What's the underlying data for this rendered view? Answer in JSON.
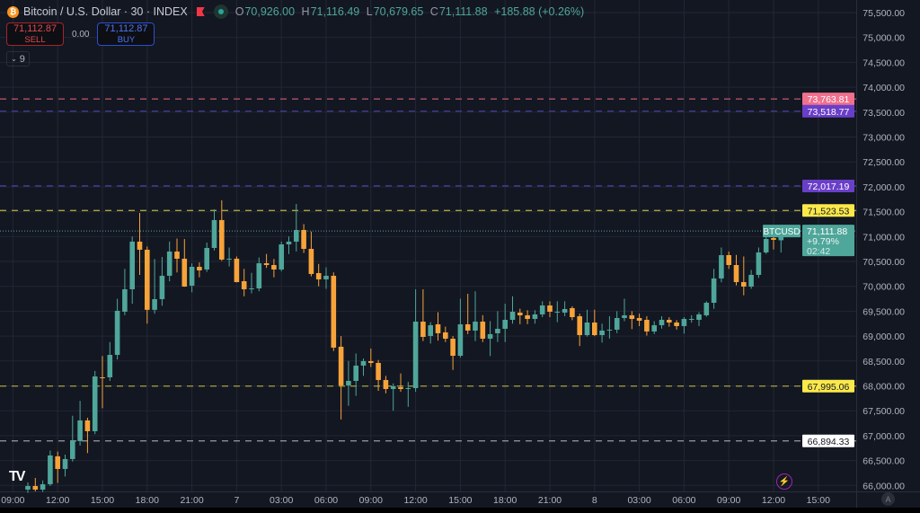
{
  "header": {
    "coin_icon": "bitcoin-icon",
    "title": "Bitcoin / U.S. Dollar · 30 · INDEX",
    "ohlc": [
      {
        "label": "O",
        "value": "70,926.00"
      },
      {
        "label": "H",
        "value": "71,116.49"
      },
      {
        "label": "L",
        "value": "70,679.65"
      },
      {
        "label": "C",
        "value": "71,111.88"
      }
    ],
    "change": "+185.88 (+0.26%)"
  },
  "trade": {
    "sell_price": "71,112.87",
    "sell_label": "SELL",
    "spread": "0.00",
    "buy_price": "71,112.87",
    "buy_label": "BUY"
  },
  "indicators_toggle": {
    "icon": "chevron-down-icon",
    "count": "9"
  },
  "colors": {
    "background": "#131722",
    "up": "#4fa69a",
    "down": "#f7a33a",
    "grid": "#232734"
  },
  "chart_data": {
    "type": "candlestick",
    "interval": "30",
    "symbol": "BTCUSD",
    "ylim": [
      66000,
      75500
    ],
    "y_ticks": [
      75500,
      75000,
      74500,
      74000,
      73500,
      73000,
      72500,
      72000,
      71500,
      71000,
      70500,
      70000,
      69500,
      69000,
      68500,
      68000,
      67500,
      67000,
      66500,
      66000
    ],
    "y_tick_labels": [
      "75,500.00",
      "75,000.00",
      "74,500.00",
      "74,000.00",
      "73,500.00",
      "73,000.00",
      "72,500.00",
      "72,000.00",
      "71,500.00",
      "71,000.00",
      "70,500.00",
      "70,000.00",
      "69,500.00",
      "69,000.00",
      "68,500.00",
      "68,000.00",
      "67,500.00",
      "67,000.00",
      "66,500.00",
      "66,000.00"
    ],
    "x_tick_labels": [
      "09:00",
      "12:00",
      "15:00",
      "18:00",
      "21:00",
      "7",
      "03:00",
      "06:00",
      "09:00",
      "12:00",
      "15:00",
      "18:00",
      "21:00",
      "8",
      "03:00",
      "06:00",
      "09:00",
      "12:00",
      "15:00"
    ],
    "grid": true,
    "candles_ohlc": [
      [
        65916,
        66060,
        65850,
        65988
      ],
      [
        65988,
        66150,
        65880,
        65916
      ],
      [
        65916,
        66100,
        65870,
        66024
      ],
      [
        66024,
        66700,
        65990,
        66602
      ],
      [
        66584,
        66680,
        66050,
        66331
      ],
      [
        66331,
        66620,
        66180,
        66530
      ],
      [
        66530,
        67400,
        66480,
        66891
      ],
      [
        66891,
        67700,
        66800,
        67306
      ],
      [
        67306,
        67360,
        66650,
        67089
      ],
      [
        67089,
        68300,
        67030,
        68190
      ],
      [
        68172,
        68600,
        67550,
        68160
      ],
      [
        68172,
        68880,
        68100,
        68623
      ],
      [
        68623,
        69750,
        68530,
        69508
      ],
      [
        69490,
        70350,
        69420,
        69941
      ],
      [
        69941,
        71000,
        69650,
        70898
      ],
      [
        70898,
        71475,
        70230,
        70735
      ],
      [
        70735,
        70800,
        69250,
        69528
      ],
      [
        69528,
        70550,
        69450,
        69742
      ],
      [
        69742,
        70590,
        69610,
        70212
      ],
      [
        70212,
        70900,
        70100,
        70699
      ],
      [
        70699,
        70960,
        70280,
        70555
      ],
      [
        70555,
        70950,
        69990,
        69995
      ],
      [
        70013,
        70460,
        69880,
        70392
      ],
      [
        70392,
        70480,
        70180,
        70320
      ],
      [
        70338,
        70880,
        70290,
        70771
      ],
      [
        70771,
        71550,
        70720,
        71331
      ],
      [
        71331,
        71728,
        70510,
        70537
      ],
      [
        70555,
        70780,
        70400,
        70555
      ],
      [
        70555,
        70600,
        70080,
        70085
      ],
      [
        70103,
        70350,
        69800,
        69941
      ],
      [
        69950,
        70270,
        69860,
        69959
      ],
      [
        69959,
        70580,
        69900,
        70464
      ],
      [
        70464,
        70650,
        70370,
        70428
      ],
      [
        70428,
        70550,
        70180,
        70338
      ],
      [
        70338,
        70900,
        70300,
        70843
      ],
      [
        70843,
        71000,
        70650,
        70898
      ],
      [
        70898,
        71656,
        70700,
        71132
      ],
      [
        71132,
        71250,
        70670,
        70753
      ],
      [
        70753,
        71100,
        70200,
        70248
      ],
      [
        70266,
        70450,
        70000,
        70140
      ],
      [
        70140,
        70380,
        69950,
        70212
      ],
      [
        70212,
        70280,
        68700,
        68768
      ],
      [
        68786,
        69000,
        67324,
        68010
      ],
      [
        68010,
        68500,
        67600,
        68100
      ],
      [
        68100,
        68650,
        67800,
        68407
      ],
      [
        68407,
        68550,
        68200,
        68497
      ],
      [
        68497,
        68750,
        68380,
        68461
      ],
      [
        68461,
        68520,
        67900,
        68118
      ],
      [
        68118,
        68200,
        67850,
        67937
      ],
      [
        67937,
        68050,
        67500,
        67992
      ],
      [
        67974,
        68250,
        67880,
        67937
      ],
      [
        67937,
        68080,
        67580,
        67955
      ],
      [
        67955,
        69941,
        67880,
        69291
      ],
      [
        69291,
        69941,
        68900,
        68984
      ],
      [
        69002,
        69280,
        68850,
        69219
      ],
      [
        69237,
        69480,
        68910,
        69057
      ],
      [
        69075,
        69190,
        68880,
        68948
      ],
      [
        68948,
        69000,
        68320,
        68605
      ],
      [
        68605,
        69750,
        68570,
        69237
      ],
      [
        69237,
        69850,
        69040,
        69111
      ],
      [
        69111,
        69900,
        68900,
        69291
      ],
      [
        69291,
        69420,
        68880,
        68948
      ],
      [
        68948,
        69300,
        68600,
        69039
      ],
      [
        69057,
        69500,
        68880,
        69147
      ],
      [
        69147,
        69650,
        68880,
        69327
      ],
      [
        69327,
        69800,
        69250,
        69490
      ],
      [
        69472,
        69550,
        69240,
        69418
      ],
      [
        69418,
        69520,
        69240,
        69345
      ],
      [
        69345,
        69520,
        69250,
        69436
      ],
      [
        69436,
        69700,
        69380,
        69616
      ],
      [
        69616,
        69700,
        69380,
        69490
      ],
      [
        69490,
        69700,
        69280,
        69490
      ],
      [
        69472,
        69700,
        69400,
        69544
      ],
      [
        69562,
        69600,
        69320,
        69381
      ],
      [
        69399,
        69450,
        68800,
        69020
      ],
      [
        69020,
        69530,
        68990,
        69273
      ],
      [
        69273,
        69530,
        69000,
        69020
      ],
      [
        69020,
        69250,
        68870,
        69111
      ],
      [
        69129,
        69400,
        68950,
        69129
      ],
      [
        69129,
        69500,
        69060,
        69363
      ],
      [
        69363,
        69750,
        69300,
        69418
      ],
      [
        69418,
        69500,
        69140,
        69345
      ],
      [
        69363,
        69450,
        69200,
        69309
      ],
      [
        69327,
        69400,
        69010,
        69093
      ],
      [
        69093,
        69300,
        69040,
        69219
      ],
      [
        69219,
        69400,
        69150,
        69327
      ],
      [
        69327,
        69380,
        69190,
        69273
      ],
      [
        69273,
        69320,
        69130,
        69201
      ],
      [
        69201,
        69380,
        69050,
        69345
      ],
      [
        69345,
        69420,
        69270,
        69345
      ],
      [
        69327,
        69480,
        69200,
        69436
      ],
      [
        69418,
        69700,
        69390,
        69670
      ],
      [
        69670,
        70350,
        69550,
        70158
      ],
      [
        70158,
        70780,
        70080,
        70627
      ],
      [
        70627,
        70700,
        70350,
        70428
      ],
      [
        70428,
        70630,
        70020,
        70085
      ],
      [
        70085,
        70600,
        69820,
        69995
      ],
      [
        69995,
        70330,
        69950,
        70230
      ],
      [
        70230,
        70780,
        70170,
        70681
      ],
      [
        70681,
        71187,
        70650,
        70952
      ],
      [
        70970,
        71030,
        70740,
        70934
      ],
      [
        70926,
        71116,
        70680,
        71112
      ]
    ],
    "price_lines": [
      {
        "value": 73763.81,
        "label": "73,763.81",
        "line_color": "#b0506e",
        "tag_color": "#f0708e",
        "text_color": "#ffffff"
      },
      {
        "value": 73518.77,
        "label": "73,518.77",
        "line_color": "#4a3b9c",
        "tag_color": "#6a3fc8",
        "text_color": "#ffffff"
      },
      {
        "value": 72017.19,
        "label": "72,017.19",
        "line_color": "#4a3b9c",
        "tag_color": "#6a3fc8",
        "text_color": "#ffffff"
      },
      {
        "value": 71523.53,
        "label": "71,523.53",
        "line_color": "#a8a33a",
        "tag_color": "#fbe94a",
        "text_color": "#131722"
      },
      {
        "value": 67995.06,
        "label": "67,995.06",
        "line_color": "#a8a33a",
        "tag_color": "#fbe94a",
        "text_color": "#131722"
      },
      {
        "value": 66894.33,
        "label": "66,894.33",
        "line_color": "#9a9ca3",
        "tag_color": "#ffffff",
        "text_color": "#131722"
      }
    ],
    "last_price": {
      "symbol": "BTCUSD",
      "price": 71111.88,
      "label": "71,111.88",
      "change": "+9.79%",
      "countdown": "02:42",
      "color": "#4fa69a"
    }
  }
}
